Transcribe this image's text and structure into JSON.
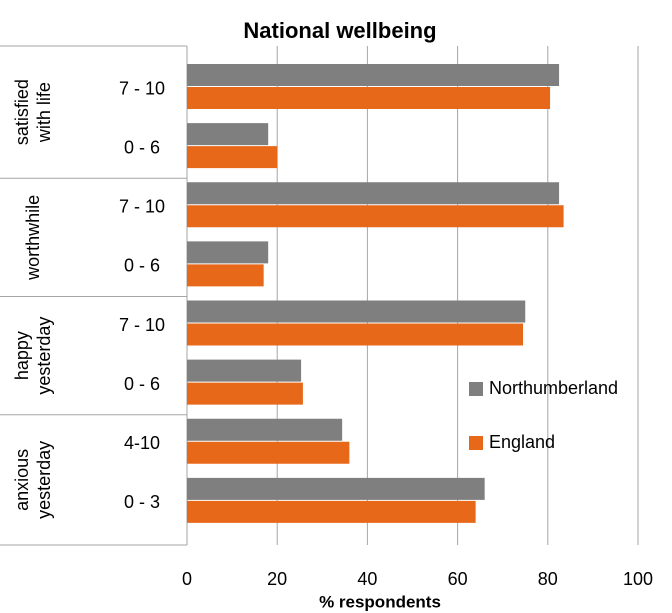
{
  "chart_data": {
    "type": "bar",
    "orientation": "horizontal",
    "title": "National wellbeing",
    "x_label": "% respondents",
    "groups": [
      {
        "name": "satisfied with life",
        "categories": [
          "7 - 10",
          "0 - 6"
        ]
      },
      {
        "name": "worthwhile",
        "categories": [
          "7 - 10",
          "0 - 6"
        ]
      },
      {
        "name": "happy yesterday",
        "categories": [
          "7 - 10",
          "0 - 6"
        ]
      },
      {
        "name": "anxious yesterday",
        "categories": [
          "4-10",
          "0 - 3"
        ]
      }
    ],
    "series": [
      {
        "name": "Northumberland",
        "color": "#7f7f7f",
        "values": [
          82.5,
          18,
          82.5,
          18,
          75,
          25.3,
          34.4,
          66
        ]
      },
      {
        "name": "England",
        "color": "#e8681a",
        "values": [
          80.5,
          20,
          83.5,
          17,
          74.5,
          25.7,
          36,
          64
        ]
      }
    ],
    "xlim": [
      0,
      100
    ],
    "xticks": [
      0,
      20,
      40,
      60,
      80,
      100
    ],
    "grid": true,
    "legend": "right"
  }
}
